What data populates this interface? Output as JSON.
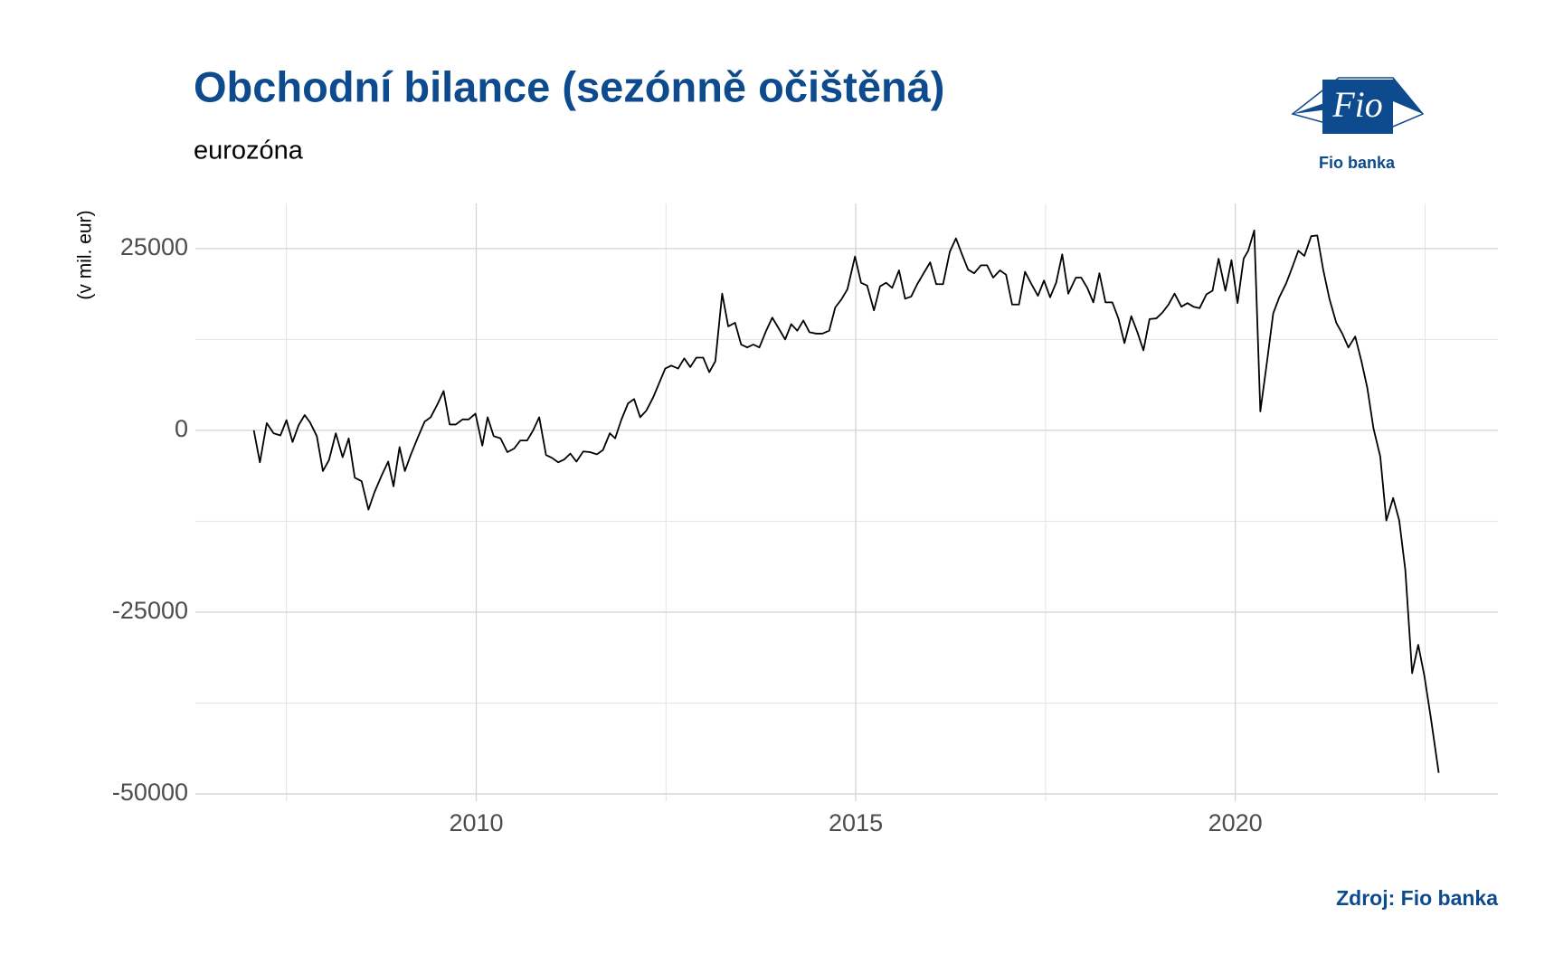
{
  "chart_data": {
    "type": "line",
    "title": "Obchodní bilance (sezónně očištěná)",
    "subtitle": "eurozóna",
    "ylabel": "(v mil. eur)",
    "source": "Zdroj: Fio banka",
    "logo": {
      "text": "Fio",
      "caption": "Fio banka"
    },
    "color": "#000000",
    "grid": true,
    "xlim": [
      2006.3,
      2023.46
    ],
    "ylim": [
      -51000,
      31200
    ],
    "xticks": [
      2010,
      2015,
      2020
    ],
    "x_minor_ticks": [
      2007.5,
      2012.5,
      2017.5,
      2022.5
    ],
    "yticks": [
      -50000,
      -25000,
      0,
      25000
    ],
    "y_minor_ticks": [
      -37500,
      -12500,
      12500
    ],
    "x": [
      2007.07,
      2007.15,
      2007.24,
      2007.33,
      2007.42,
      2007.5,
      2007.58,
      2007.66,
      2007.74,
      2007.81,
      2007.9,
      2007.98,
      2008.06,
      2008.15,
      2008.24,
      2008.32,
      2008.4,
      2008.49,
      2008.58,
      2008.66,
      2008.75,
      2008.84,
      2008.91,
      2008.99,
      2009.06,
      2009.14,
      2009.23,
      2009.32,
      2009.4,
      2009.49,
      2009.57,
      2009.65,
      2009.73,
      2009.82,
      2009.9,
      2009.99,
      2010.08,
      2010.15,
      2010.23,
      2010.32,
      2010.41,
      2010.5,
      2010.58,
      2010.67,
      2010.75,
      2010.83,
      2010.92,
      2011.0,
      2011.08,
      2011.16,
      2011.24,
      2011.32,
      2011.41,
      2011.5,
      2011.59,
      2011.67,
      2011.76,
      2011.83,
      2011.91,
      2012.0,
      2012.08,
      2012.16,
      2012.24,
      2012.33,
      2012.41,
      2012.49,
      2012.57,
      2012.66,
      2012.74,
      2012.82,
      2012.9,
      2012.99,
      2013.07,
      2013.15,
      2013.24,
      2013.32,
      2013.41,
      2013.49,
      2013.57,
      2013.65,
      2013.73,
      2013.82,
      2013.9,
      2013.98,
      2014.07,
      2014.15,
      2014.23,
      2014.31,
      2014.39,
      2014.48,
      2014.56,
      2014.65,
      2014.73,
      2014.81,
      2014.89,
      2014.99,
      2015.07,
      2015.15,
      2015.24,
      2015.32,
      2015.4,
      2015.48,
      2015.57,
      2015.65,
      2015.73,
      2015.81,
      2015.9,
      2015.98,
      2016.06,
      2016.15,
      2016.24,
      2016.32,
      2016.4,
      2016.48,
      2016.56,
      2016.65,
      2016.73,
      2016.81,
      2016.9,
      2016.98,
      2017.06,
      2017.15,
      2017.23,
      2017.31,
      2017.4,
      2017.48,
      2017.56,
      2017.64,
      2017.72,
      2017.8,
      2017.9,
      2017.97,
      2018.05,
      2018.13,
      2018.21,
      2018.29,
      2018.38,
      2018.46,
      2018.54,
      2018.63,
      2018.71,
      2018.79,
      2018.87,
      2018.96,
      2019.04,
      2019.12,
      2019.2,
      2019.29,
      2019.37,
      2019.45,
      2019.53,
      2019.62,
      2019.7,
      2019.78,
      2019.87,
      2019.95,
      2020.03,
      2020.11,
      2020.17,
      2020.25,
      2020.33,
      2020.42,
      2020.5,
      2020.58,
      2020.67,
      2020.75,
      2020.83,
      2020.91,
      2021.0,
      2021.08,
      2021.16,
      2021.24,
      2021.33,
      2021.41,
      2021.49,
      2021.58,
      2021.66,
      2021.74,
      2021.82,
      2021.91,
      2021.99,
      2022.08,
      2022.16,
      2022.24,
      2022.33,
      2022.41,
      2022.49,
      2022.58,
      2022.68
    ],
    "values": [
      0,
      -4400,
      1000,
      -400,
      -700,
      1400,
      -1600,
      700,
      2100,
      1100,
      -800,
      -5600,
      -4100,
      -400,
      -3700,
      -1100,
      -6500,
      -7000,
      -10900,
      -8500,
      -6300,
      -4300,
      -7700,
      -2300,
      -5600,
      -3300,
      -1000,
      1200,
      1800,
      3600,
      5400,
      800,
      800,
      1500,
      1500,
      2300,
      -2100,
      1800,
      -800,
      -1100,
      -3000,
      -2500,
      -1400,
      -1400,
      0,
      1800,
      -3400,
      -3800,
      -4400,
      -4000,
      -3200,
      -4300,
      -2900,
      -3000,
      -3300,
      -2700,
      -400,
      -1100,
      1400,
      3700,
      4300,
      1800,
      2700,
      4500,
      6500,
      8500,
      8900,
      8500,
      9900,
      8700,
      10000,
      10000,
      8000,
      9500,
      18800,
      14300,
      14800,
      11800,
      11400,
      11800,
      11400,
      13700,
      15500,
      14100,
      12500,
      14600,
      13700,
      15100,
      13500,
      13300,
      13300,
      13700,
      16900,
      18000,
      19400,
      23900,
      20300,
      19900,
      16500,
      19800,
      20300,
      19600,
      22000,
      18100,
      18400,
      20100,
      21700,
      23100,
      20100,
      20100,
      24600,
      26400,
      24200,
      22100,
      21600,
      22700,
      22700,
      21000,
      22000,
      21400,
      17300,
      17300,
      21800,
      20200,
      18500,
      20600,
      18300,
      20300,
      24200,
      18800,
      21000,
      21000,
      19600,
      17600,
      21600,
      17600,
      17600,
      15400,
      12000,
      15700,
      13500,
      11000,
      15300,
      15400,
      16200,
      17300,
      18800,
      17000,
      17500,
      17000,
      16800,
      18700,
      19200,
      23600,
      19200,
      23400,
      17500,
      23600,
      24700,
      27500,
      2600,
      9600,
      16100,
      18300,
      20200,
      22400,
      24700,
      24000,
      26700,
      26800,
      22000,
      18100,
      14800,
      13300,
      11400,
      12900,
      9600,
      5800,
      300,
      -3600,
      -12400,
      -9300,
      -12400,
      -19200,
      -33400,
      -29500,
      -33700,
      -39800,
      -47100
    ]
  }
}
